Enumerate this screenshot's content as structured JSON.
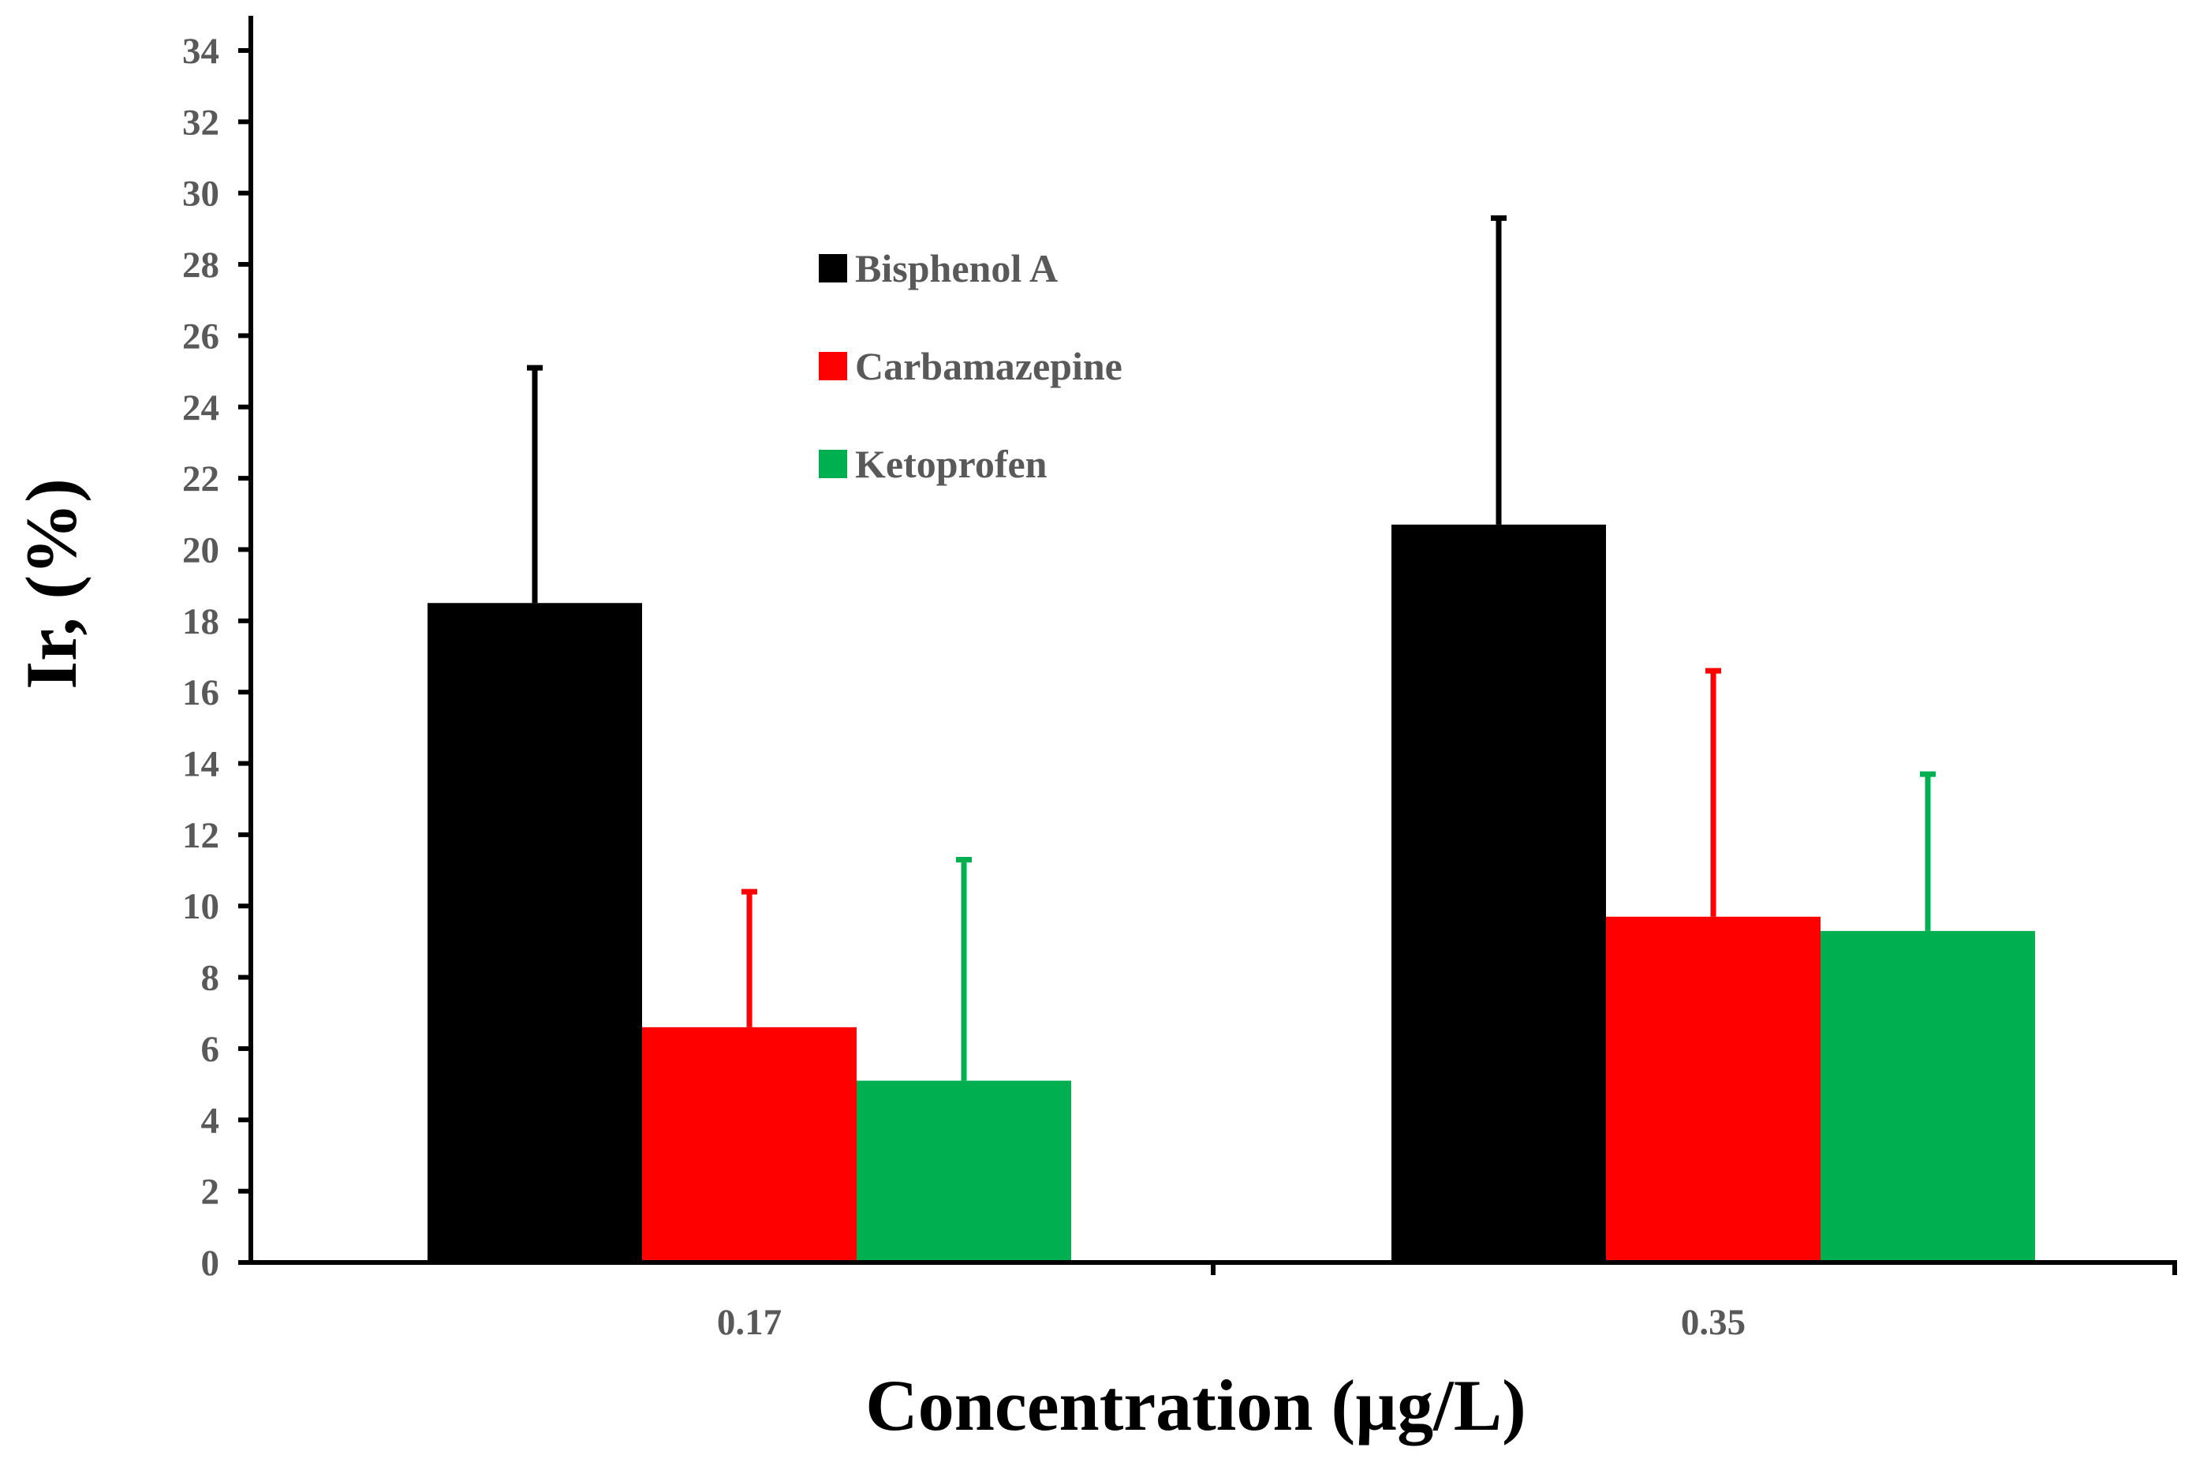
{
  "chart_data": {
    "type": "bar",
    "title": "",
    "xlabel": "Concentration (µg/L)",
    "ylabel": "Ir, (%)",
    "ylim": [
      0,
      34
    ],
    "yticks": [
      0,
      2,
      4,
      6,
      8,
      10,
      12,
      14,
      16,
      18,
      20,
      22,
      24,
      26,
      28,
      30,
      32,
      34
    ],
    "ytick_labels": [
      "0",
      "2",
      "4",
      "6",
      "8",
      "10",
      "12",
      "14",
      "16",
      "18",
      "20",
      "22",
      "24",
      "26",
      "28",
      "30",
      "32",
      "34"
    ],
    "categories": [
      "0.17",
      "0.35"
    ],
    "grid": false,
    "legend_position": "top-center",
    "series": [
      {
        "name": "Bisphenol A",
        "color": "#000000",
        "values": [
          18.5,
          20.7
        ],
        "error_upper": [
          6.6,
          8.6
        ]
      },
      {
        "name": "Carbamazepine",
        "color": "#ff0000",
        "values": [
          6.6,
          9.7
        ],
        "error_upper": [
          3.8,
          6.9
        ]
      },
      {
        "name": "Ketoprofen",
        "color": "#00b050",
        "values": [
          5.1,
          9.3
        ],
        "error_upper": [
          6.2,
          4.4
        ]
      }
    ]
  }
}
